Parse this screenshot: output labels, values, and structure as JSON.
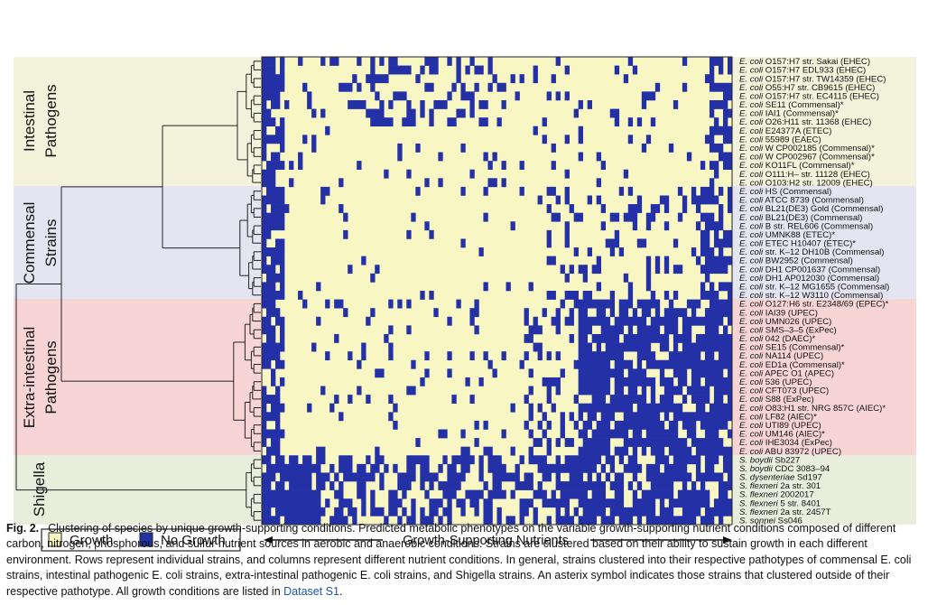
{
  "groups": [
    {
      "label_lines": [
        "Intestinal",
        "Pathogens"
      ],
      "color": "#f3f3dc"
    },
    {
      "label_lines": [
        "Commensal",
        "Strains"
      ],
      "color": "#e4e4f2"
    },
    {
      "label_lines": [
        "Extra-intestinal",
        "Pathogens"
      ],
      "color": "#f8d5d5"
    },
    {
      "label_lines": [
        "Shigella"
      ],
      "color": "#e8eddc"
    }
  ],
  "strains": [
    {
      "species": "E. coli",
      "name": "O157:H7 str. Sakai (EHEC)"
    },
    {
      "species": "E. coli",
      "name": "O157:H7 EDL933 (EHEC)"
    },
    {
      "species": "E. coli",
      "name": "O157:H7 str. TW14359 (EHEC)"
    },
    {
      "species": "E. coli",
      "name": "O55:H7 str. CB9615 (EHEC)"
    },
    {
      "species": "E. coli",
      "name": "O157:H7 str. EC4115 (EHEC)"
    },
    {
      "species": "E. coli",
      "name": "SE11 (Commensal)*"
    },
    {
      "species": "E. coli",
      "name": "IAI1 (Commensal)*"
    },
    {
      "species": "E. coli",
      "name": "O26:H11 str. 11368 (EHEC)"
    },
    {
      "species": "E. coli",
      "name": "E24377A (ETEC)"
    },
    {
      "species": "E. coli",
      "name": "55989 (EAEC)"
    },
    {
      "species": "E. coli",
      "name": "W CP002185 (Commensal)*"
    },
    {
      "species": "E. coli",
      "name": "W CP002967 (Commensal)*"
    },
    {
      "species": "E. coli",
      "name": "KO11FL (Commensal)*"
    },
    {
      "species": "E. coli",
      "name": "O111:H– str. 11128 (EHEC)"
    },
    {
      "species": "E. coli",
      "name": "O103:H2 str. 12009 (EHEC)"
    },
    {
      "species": "E. coli",
      "name": "HS (Commensal)"
    },
    {
      "species": "E. coli",
      "name": "ATCC 8739 (Commensal)"
    },
    {
      "species": "E. coli",
      "name": "BL21(DE3) Gold (Commensal)"
    },
    {
      "species": "E. coli",
      "name": "BL21(DE3) (Commensal)"
    },
    {
      "species": "E. coli",
      "name": "B str. REL606 (Commensal)"
    },
    {
      "species": "E. coli",
      "name": "UMNK88 (ETEC)*"
    },
    {
      "species": "E. coli",
      "name": "ETEC H10407 (ETEC)*"
    },
    {
      "species": "E. coli",
      "name": "str. K–12 DH10B (Commensal)"
    },
    {
      "species": "E. coli",
      "name": "BW2952 (Commensal)"
    },
    {
      "species": "E. coli",
      "name": "DH1 CP001637 (Commensal)"
    },
    {
      "species": "E. coli",
      "name": "DH1 AP012030 (Commensal)"
    },
    {
      "species": "E. coli",
      "name": "str. K–12 MG1655 (Commensal)"
    },
    {
      "species": "E. coli",
      "name": "str. K–12 W3110 (Commensal)"
    },
    {
      "species": "E. coli",
      "name": "O127:H6 str. E2348/69 (EPEC)*"
    },
    {
      "species": "E. coli",
      "name": "IAI39 (UPEC)"
    },
    {
      "species": "E. coli",
      "name": "UMN026 (UPEC)"
    },
    {
      "species": "E. coli",
      "name": "SMS–3–5 (ExPec)"
    },
    {
      "species": "E. coli",
      "name": "042 (DAEC)*"
    },
    {
      "species": "E. coli",
      "name": "SE15 (Commensal)*"
    },
    {
      "species": "E. coli",
      "name": "NA114 (UPEC)"
    },
    {
      "species": "E. coli",
      "name": "ED1a (Commensal)*"
    },
    {
      "species": "E. coli",
      "name": "APEC O1 (APEC)"
    },
    {
      "species": "E. coli",
      "name": "536 (UPEC)"
    },
    {
      "species": "E. coli",
      "name": "CFT073 (UPEC)"
    },
    {
      "species": "E. coli",
      "name": "S88 (ExPec)"
    },
    {
      "species": "E. coli",
      "name": "O83:H1 str. NRG 857C (AIEC)*"
    },
    {
      "species": "E. coli",
      "name": "LF82 (AIEC)*"
    },
    {
      "species": "E. coli",
      "name": "UTI89 (UPEC)"
    },
    {
      "species": "E. coli",
      "name": "UM146 (AIEC)*"
    },
    {
      "species": "E. coli",
      "name": "IHE3034 (ExPec)"
    },
    {
      "species": "E. coli",
      "name": "ABU 83972 (UPEC)"
    },
    {
      "species": "S. boydii",
      "name": "Sb227"
    },
    {
      "species": "S. boydii",
      "name": "CDC 3083–94"
    },
    {
      "species": "S. dysenteriae",
      "name": "Sd197"
    },
    {
      "species": "S. flexneri",
      "name": "2a str. 301"
    },
    {
      "species": "S. flexneri",
      "name": "2002017"
    },
    {
      "species": "S. flexneri",
      "name": "5 str. 8401"
    },
    {
      "species": "S. flexneri",
      "name": "2a str. 2457T"
    },
    {
      "species": "S. sonnei",
      "name": "Ss046"
    }
  ],
  "legend": {
    "growth_label": "Growth",
    "no_growth_label": "No Growth"
  },
  "axis_label": "Growth-Supporting Nutrients",
  "heatmap": {
    "growth_color": "#f8f6c2",
    "no_growth_color": "#2430a6"
  },
  "caption": {
    "figure_label": "Fig. 2.",
    "text_before_link": "Clustering of species by unique growth-supporting conditions. Predicted metabolic phenotypes on the variable growth-supporting nutrient conditions composed of different carbon, nitrogen, phosphorous, and sulfur nutrient sources in aerobic and anaerobic conditions. Strains are clustered based on their ability to sustain growth in each different environment. Rows represent individual strains, and columns represent different nutrient conditions. In general, strains clustered into their respective pathotypes of commensal E. coli strains, intestinal pathogenic E. coli strains, extra-intestinal pathogenic E. coli strains, and Shigella strains. An asterix symbol indicates those strains that clustered outside of their respective pathotype. All growth conditions are listed in ",
    "link_text": "Dataset S1",
    "text_after_link": "."
  }
}
